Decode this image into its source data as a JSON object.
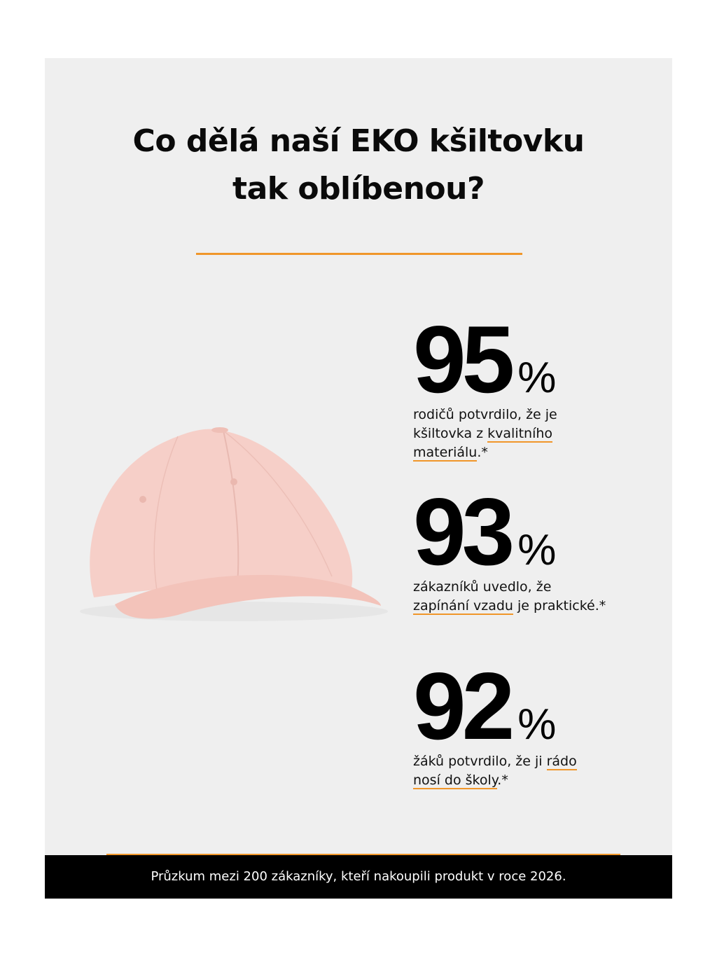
{
  "title": {
    "line1": "Co dělá naší EKO kšiltovku",
    "line2": "tak oblíbenou?"
  },
  "colors": {
    "accent": "#f0962a",
    "background": "#efefef",
    "footer": "#000000",
    "cap": "#f6cfc8"
  },
  "image": {
    "icon": "pink-cap-image"
  },
  "stats": [
    {
      "value": "95",
      "unit": "%",
      "segments": [
        {
          "text": "rodičů potvrdilo, že je",
          "u": false,
          "br": true
        },
        {
          "text": "kšiltovka z ",
          "u": false
        },
        {
          "text": "kvalitního",
          "u": true,
          "br": true
        },
        {
          "text": "materiálu",
          "u": true
        },
        {
          "text": ".*",
          "u": false
        }
      ]
    },
    {
      "value": "93",
      "unit": "%",
      "segments": [
        {
          "text": "zákazníků uvedlo, že",
          "u": false,
          "br": true
        },
        {
          "text": "zapínání vzadu",
          "u": true
        },
        {
          "text": " je praktické.*",
          "u": false
        }
      ]
    },
    {
      "value": "92",
      "unit": "%",
      "segments": [
        {
          "text": "žáků potvrdilo, že ji ",
          "u": false
        },
        {
          "text": "rádo",
          "u": true,
          "br": true
        },
        {
          "text": "nosí do školy",
          "u": true
        },
        {
          "text": ".*",
          "u": false
        }
      ]
    }
  ],
  "footer": {
    "text": "Průzkum mezi 200 zákazníky, kteří nakoupili produkt v roce 2026."
  }
}
